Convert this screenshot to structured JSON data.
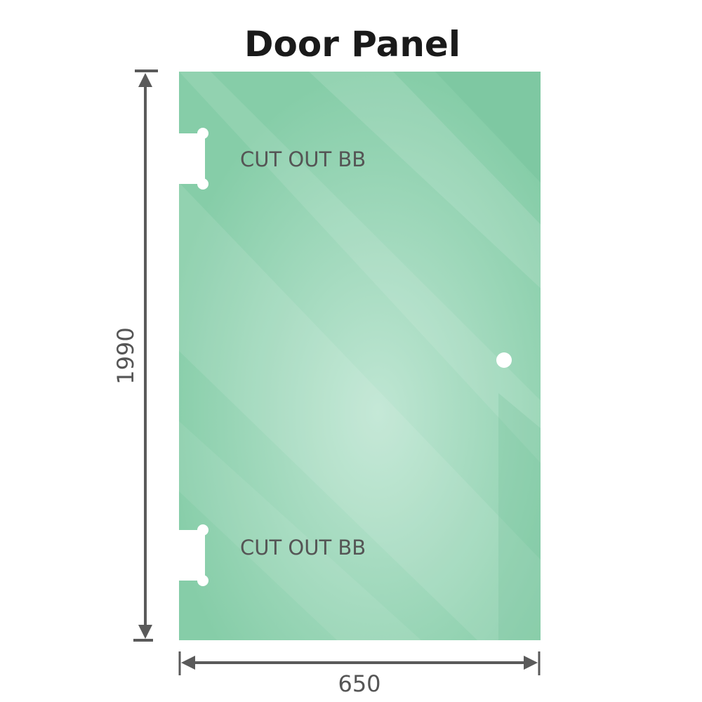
{
  "title": "Door Panel",
  "cutout_top_label": "CUT OUT BB",
  "cutout_bottom_label": "CUT OUT BB",
  "height_dimension": "1990",
  "width_dimension": "650",
  "colors": {
    "glass": "#86cda8",
    "dimension_line": "#5a5a5a",
    "text": "#555555"
  }
}
